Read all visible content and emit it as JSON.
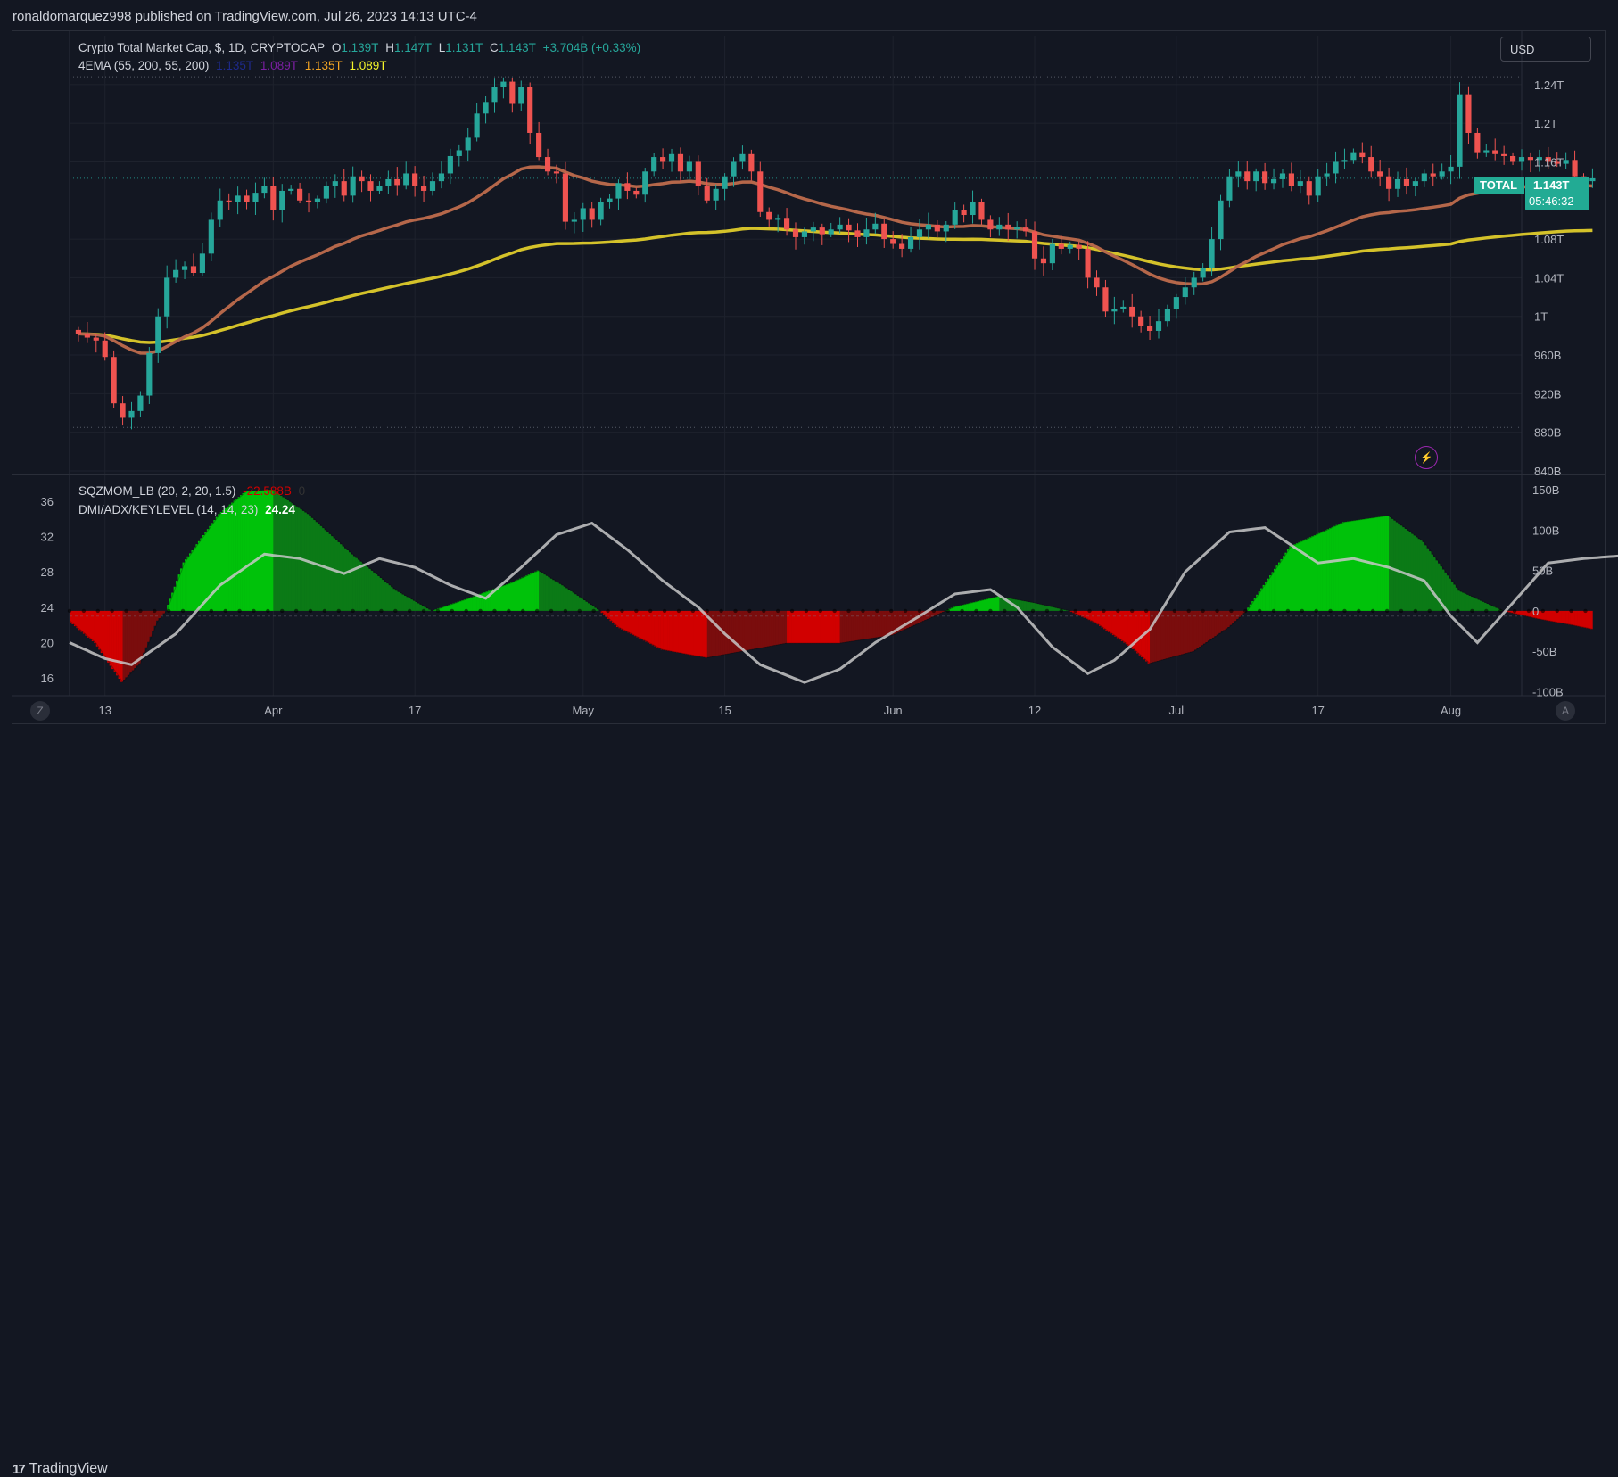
{
  "header": {
    "publisher_line": "ronaldomarquez998 published on TradingView.com, Jul 26, 2023 14:13 UTC-4"
  },
  "toolbar": {
    "currency_label": "USD"
  },
  "footer": {
    "brand": "TradingView",
    "logo_text": "17"
  },
  "buttons": {
    "timezone_left": "Z",
    "auto_right": "A"
  },
  "legend_main": {
    "title": "Crypto Total Market Cap, $, 1D, CRYPTOCAP",
    "o_label": "O",
    "o_value": "1.139T",
    "h_label": "H",
    "h_value": "1.147T",
    "l_label": "L",
    "l_value": "1.131T",
    "c_label": "C",
    "c_value": "1.143T",
    "change": "+3.704B (+0.33%)"
  },
  "legend_ema": {
    "title": "4EMA (55, 200, 55, 200)",
    "v1": "1.135T",
    "v2": "1.089T",
    "v3": "1.135T",
    "v4": "1.089T"
  },
  "legend_sqz": {
    "title": "SQZMOM_LB (20, 2, 20, 1.5)",
    "v1": "-22.588B",
    "v2": "0"
  },
  "legend_dmi": {
    "title": "DMI/ADX/KEYLEVEL (14, 14, 23)",
    "v1": "24.24"
  },
  "price_tag": {
    "symbol": "TOTAL",
    "value": "1.143T",
    "countdown": "05:46:32"
  },
  "colors": {
    "up": "#26a69a",
    "down": "#ef5350",
    "ema55": "#b5674a",
    "ema200": "#d4c22a",
    "bg": "#131722",
    "grid": "#1e222d",
    "sqz_strong_green": "#00c20a",
    "sqz_weak_green": "#0b7a16",
    "sqz_strong_red": "#d10000",
    "sqz_weak_red": "#7a0d0d",
    "adx": "#c8c8c8"
  },
  "chart_data": [
    {
      "type": "candlestick",
      "title": "Crypto Total Market Cap, $, 1D, CRYPTOCAP",
      "ylim": [
        840,
        1250
      ],
      "y_unit": "B",
      "y_ticks": [
        "1.24T",
        "1.2T",
        "1.16T",
        "1.08T",
        "1.04T",
        "1T",
        "960B",
        "920B",
        "880B",
        "840B"
      ],
      "y_tick_values": [
        1240,
        1200,
        1160,
        1080,
        1040,
        1000,
        960,
        920,
        880,
        840
      ],
      "x_ticks": [
        "13",
        "Apr",
        "17",
        "May",
        "15",
        "Jun",
        "12",
        "Jul",
        "17",
        "Aug"
      ],
      "x_tick_days": [
        3,
        22,
        38,
        57,
        73,
        92,
        108,
        124,
        140,
        155
      ],
      "x_range_days": [
        -1,
        163
      ],
      "close_values": [
        982,
        978,
        975,
        958,
        910,
        895,
        902,
        918,
        962,
        1000,
        1040,
        1048,
        1052,
        1045,
        1065,
        1100,
        1120,
        1118,
        1125,
        1118,
        1128,
        1135,
        1110,
        1130,
        1132,
        1120,
        1118,
        1122,
        1135,
        1140,
        1125,
        1145,
        1140,
        1130,
        1135,
        1142,
        1136,
        1148,
        1135,
        1130,
        1140,
        1148,
        1166,
        1172,
        1185,
        1210,
        1222,
        1238,
        1243,
        1220,
        1238,
        1190,
        1165,
        1150,
        1148,
        1098,
        1100,
        1112,
        1100,
        1118,
        1122,
        1138,
        1130,
        1126,
        1150,
        1165,
        1160,
        1168,
        1150,
        1160,
        1135,
        1120,
        1132,
        1145,
        1160,
        1168,
        1150,
        1108,
        1100,
        1102,
        1090,
        1082,
        1088,
        1092,
        1085,
        1090,
        1095,
        1089,
        1082,
        1090,
        1096,
        1080,
        1075,
        1070,
        1082,
        1090,
        1095,
        1088,
        1095,
        1110,
        1105,
        1118,
        1100,
        1090,
        1095,
        1090,
        1092,
        1088,
        1060,
        1055,
        1075,
        1070,
        1074,
        1070,
        1040,
        1030,
        1005,
        1008,
        1010,
        1000,
        990,
        985,
        995,
        1008,
        1020,
        1030,
        1040,
        1050,
        1080,
        1120,
        1145,
        1150,
        1140,
        1150,
        1138,
        1142,
        1148,
        1135,
        1140,
        1125,
        1145,
        1148,
        1160,
        1162,
        1170,
        1165,
        1150,
        1145,
        1132,
        1142,
        1135,
        1140,
        1148,
        1145,
        1150,
        1155,
        1230,
        1190,
        1170,
        1172,
        1168,
        1166,
        1160,
        1165,
        1162,
        1165,
        1160,
        1158,
        1162,
        1145,
        1140,
        1143
      ],
      "ema55_last": 1135,
      "ema200_last": 1089,
      "last_price": 1143
    },
    {
      "type": "histogram",
      "title": "SQZMOM_LB (20, 2, 20, 1.5)",
      "ylim": [
        -105,
        160
      ],
      "y_unit": "B",
      "y_ticks": [
        "150B",
        "100B",
        "50B",
        "0",
        "-50B",
        "-100B"
      ],
      "y_tick_values": [
        150,
        100,
        50,
        0,
        -50,
        -100
      ],
      "left_ticks": [
        "36",
        "32",
        "28",
        "24",
        "20",
        "16"
      ],
      "left_tick_values": [
        36,
        32,
        28,
        24,
        20,
        16
      ],
      "momentum_knots": [
        [
          -1,
          -12
        ],
        [
          2,
          -40
        ],
        [
          5,
          -88
        ],
        [
          7,
          -65
        ],
        [
          9,
          -12
        ],
        [
          10,
          0
        ],
        [
          12,
          60
        ],
        [
          16,
          120
        ],
        [
          19,
          148
        ],
        [
          22,
          150
        ],
        [
          26,
          120
        ],
        [
          31,
          70
        ],
        [
          36,
          25
        ],
        [
          40,
          0
        ],
        [
          44,
          15
        ],
        [
          49,
          35
        ],
        [
          52,
          50
        ],
        [
          55,
          30
        ],
        [
          59,
          0
        ],
        [
          61,
          -20
        ],
        [
          66,
          -48
        ],
        [
          71,
          -58
        ],
        [
          76,
          -48
        ],
        [
          80,
          -40
        ],
        [
          86,
          -40
        ],
        [
          92,
          -30
        ],
        [
          96,
          -10
        ],
        [
          99,
          5
        ],
        [
          104,
          18
        ],
        [
          108,
          10
        ],
        [
          112,
          0
        ],
        [
          115,
          -15
        ],
        [
          119,
          -45
        ],
        [
          121,
          -65
        ],
        [
          126,
          -50
        ],
        [
          130,
          -20
        ],
        [
          132,
          0
        ],
        [
          137,
          80
        ],
        [
          143,
          110
        ],
        [
          148,
          118
        ],
        [
          152,
          85
        ],
        [
          156,
          25
        ],
        [
          161,
          0
        ],
        [
          165,
          -10
        ],
        [
          169,
          -18
        ],
        [
          171,
          -22.588
        ]
      ],
      "adx_knots": [
        [
          -1,
          20.0
        ],
        [
          3,
          18.2
        ],
        [
          6,
          17.5
        ],
        [
          11,
          21.0
        ],
        [
          16,
          26.5
        ],
        [
          21,
          30.0
        ],
        [
          25,
          29.5
        ],
        [
          30,
          27.8
        ],
        [
          34,
          29.5
        ],
        [
          38,
          28.5
        ],
        [
          42,
          26.5
        ],
        [
          46,
          25.0
        ],
        [
          50,
          28.5
        ],
        [
          54,
          32.2
        ],
        [
          58,
          33.5
        ],
        [
          62,
          30.5
        ],
        [
          66,
          27.0
        ],
        [
          70,
          24.0
        ],
        [
          73,
          21.0
        ],
        [
          77,
          17.5
        ],
        [
          82,
          15.5
        ],
        [
          86,
          17.0
        ],
        [
          90,
          20.0
        ],
        [
          95,
          23.0
        ],
        [
          99,
          25.5
        ],
        [
          103,
          26.0
        ],
        [
          106,
          24.0
        ],
        [
          110,
          19.5
        ],
        [
          114,
          16.5
        ],
        [
          117,
          18.0
        ],
        [
          121,
          21.5
        ],
        [
          125,
          28.0
        ],
        [
          130,
          32.5
        ],
        [
          134,
          33.0
        ],
        [
          137,
          31.0
        ],
        [
          140,
          29.0
        ],
        [
          144,
          29.5
        ],
        [
          148,
          28.5
        ],
        [
          152,
          27.0
        ],
        [
          155,
          23.0
        ],
        [
          158,
          20.0
        ],
        [
          162,
          24.5
        ],
        [
          166,
          29.0
        ],
        [
          170,
          29.5
        ],
        [
          174,
          29.8
        ],
        [
          177,
          28.5
        ],
        [
          181,
          24.24
        ]
      ]
    }
  ]
}
